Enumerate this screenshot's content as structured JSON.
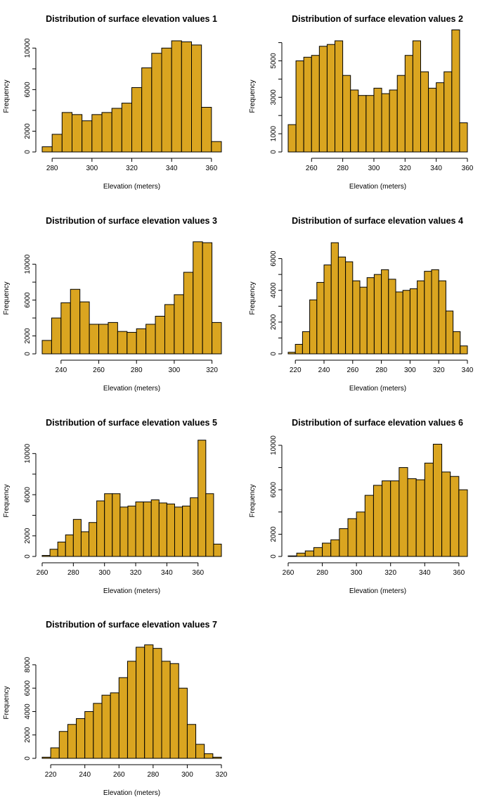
{
  "colors": {
    "bar_fill": "#DAA520",
    "bar_stroke": "#000000"
  },
  "chart_data": [
    {
      "type": "bar",
      "title": "Distribution of surface elevation values 1",
      "xlabel": "Elevation (meters)",
      "ylabel": "Frequency",
      "bin_width": 5,
      "bins_start": [
        275,
        280,
        285,
        290,
        295,
        300,
        305,
        310,
        315,
        320,
        325,
        330,
        335,
        340,
        345,
        350,
        355,
        360
      ],
      "values": [
        500,
        1700,
        3800,
        3600,
        3000,
        3600,
        3800,
        4200,
        4700,
        6200,
        8100,
        9500,
        10000,
        10700,
        10600,
        10300,
        4300,
        1000
      ],
      "x_ticks": [
        280,
        300,
        320,
        340,
        360
      ],
      "y_ticks": [
        0,
        2000,
        6000,
        10000
      ],
      "xlim": [
        275,
        365
      ],
      "ylim": [
        0,
        10700
      ]
    },
    {
      "type": "bar",
      "title": "Distribution of surface elevation values 2",
      "xlabel": "Elevation (meters)",
      "ylabel": "Frequency",
      "bin_width": 5,
      "bins_start": [
        245,
        250,
        255,
        260,
        265,
        270,
        275,
        280,
        285,
        290,
        295,
        300,
        305,
        310,
        315,
        320,
        325,
        330,
        335,
        340,
        345,
        350,
        355
      ],
      "values": [
        1500,
        5000,
        5200,
        5300,
        5800,
        5900,
        6100,
        4200,
        3400,
        3100,
        3100,
        3500,
        3200,
        3400,
        4200,
        5300,
        6100,
        4400,
        3500,
        3800,
        4400,
        6700,
        1600
      ],
      "x_ticks": [
        260,
        280,
        300,
        320,
        340,
        360
      ],
      "y_ticks": [
        0,
        1000,
        3000,
        5000
      ],
      "xlim": [
        245,
        360
      ],
      "ylim": [
        0,
        6100
      ]
    },
    {
      "type": "bar",
      "title": "Distribution of surface elevation values 3",
      "xlabel": "Elevation (meters)",
      "ylabel": "Frequency",
      "bin_width": 5,
      "bins_start": [
        230,
        235,
        240,
        245,
        250,
        255,
        260,
        265,
        270,
        275,
        280,
        285,
        290,
        295,
        300,
        305,
        310,
        315,
        320
      ],
      "values": [
        1500,
        4000,
        5700,
        7200,
        5800,
        3300,
        3300,
        3500,
        2500,
        2400,
        2800,
        3300,
        4200,
        5500,
        6600,
        9100,
        12500,
        12400,
        3500
      ],
      "x_ticks": [
        240,
        260,
        280,
        300,
        320
      ],
      "y_ticks": [
        0,
        2000,
        6000,
        10000
      ],
      "xlim": [
        230,
        325
      ],
      "ylim": [
        0,
        12400
      ]
    },
    {
      "type": "bar",
      "title": "Distribution of surface elevation values 4",
      "xlabel": "Elevation (meters)",
      "ylabel": "Frequency",
      "bin_width": 5,
      "bins_start": [
        215,
        220,
        225,
        230,
        235,
        240,
        245,
        250,
        255,
        260,
        265,
        270,
        275,
        280,
        285,
        290,
        295,
        300,
        305,
        310,
        315,
        320,
        325,
        330,
        335
      ],
      "values": [
        100,
        600,
        1400,
        3400,
        4500,
        5600,
        7000,
        6100,
        5800,
        4600,
        4200,
        4800,
        5000,
        5300,
        4700,
        3900,
        4000,
        4100,
        4600,
        5200,
        5300,
        4600,
        2700,
        1400,
        500
      ],
      "x_ticks": [
        220,
        240,
        260,
        280,
        300,
        320,
        340
      ],
      "y_ticks": [
        0,
        2000,
        4000,
        6000
      ],
      "xlim": [
        215,
        340
      ],
      "ylim": [
        0,
        7000
      ]
    },
    {
      "type": "bar",
      "title": "Distribution of surface elevation values 5",
      "xlabel": "Elevation (meters)",
      "ylabel": "Frequency",
      "bin_width": 5,
      "bins_start": [
        260,
        265,
        270,
        275,
        280,
        285,
        290,
        295,
        300,
        305,
        310,
        315,
        320,
        325,
        330,
        335,
        340,
        345,
        350,
        355,
        360,
        365,
        370
      ],
      "values": [
        100,
        700,
        1400,
        2100,
        3600,
        2400,
        3300,
        5400,
        6100,
        6100,
        4800,
        4900,
        5300,
        5300,
        5500,
        5200,
        5100,
        4800,
        4900,
        5700,
        11300,
        6100,
        1200
      ],
      "x_ticks": [
        260,
        280,
        300,
        320,
        340,
        360
      ],
      "y_ticks": [
        0,
        2000,
        6000,
        10000
      ],
      "xlim": [
        260,
        375
      ],
      "ylim": [
        0,
        10800
      ]
    },
    {
      "type": "bar",
      "title": "Distribution of surface elevation values 6",
      "xlabel": "Elevation (meters)",
      "ylabel": "Frequency",
      "bin_width": 5,
      "bins_start": [
        260,
        265,
        270,
        275,
        280,
        285,
        290,
        295,
        300,
        305,
        310,
        315,
        320,
        325,
        330,
        335,
        340,
        345,
        350,
        355,
        360
      ],
      "values": [
        50,
        300,
        500,
        800,
        1200,
        1500,
        2500,
        3400,
        4000,
        5500,
        6400,
        6800,
        6800,
        8000,
        7000,
        6900,
        8400,
        10100,
        7600,
        7200,
        6000
      ],
      "x_ticks": [
        260,
        280,
        300,
        320,
        340,
        360
      ],
      "y_ticks": [
        0,
        2000,
        6000,
        10000
      ],
      "xlim": [
        260,
        365
      ],
      "ylim": [
        0,
        10000
      ]
    },
    {
      "type": "bar",
      "title": "Distribution of surface elevation values 7",
      "xlabel": "Elevation (meters)",
      "ylabel": "Frequency",
      "bin_width": 5,
      "bins_start": [
        215,
        220,
        225,
        230,
        235,
        240,
        245,
        250,
        255,
        260,
        265,
        270,
        275,
        280,
        285,
        290,
        295,
        300,
        305,
        310,
        315
      ],
      "values": [
        100,
        900,
        2300,
        2900,
        3400,
        4000,
        4700,
        5400,
        5600,
        6900,
        8300,
        9500,
        9700,
        9400,
        8300,
        8100,
        6000,
        2900,
        1200,
        400,
        100
      ],
      "x_ticks": [
        220,
        240,
        260,
        280,
        300,
        320
      ],
      "y_ticks": [
        0,
        2000,
        4000,
        6000,
        8000
      ],
      "xlim": [
        215,
        320
      ],
      "ylim": [
        0,
        9500
      ]
    }
  ]
}
